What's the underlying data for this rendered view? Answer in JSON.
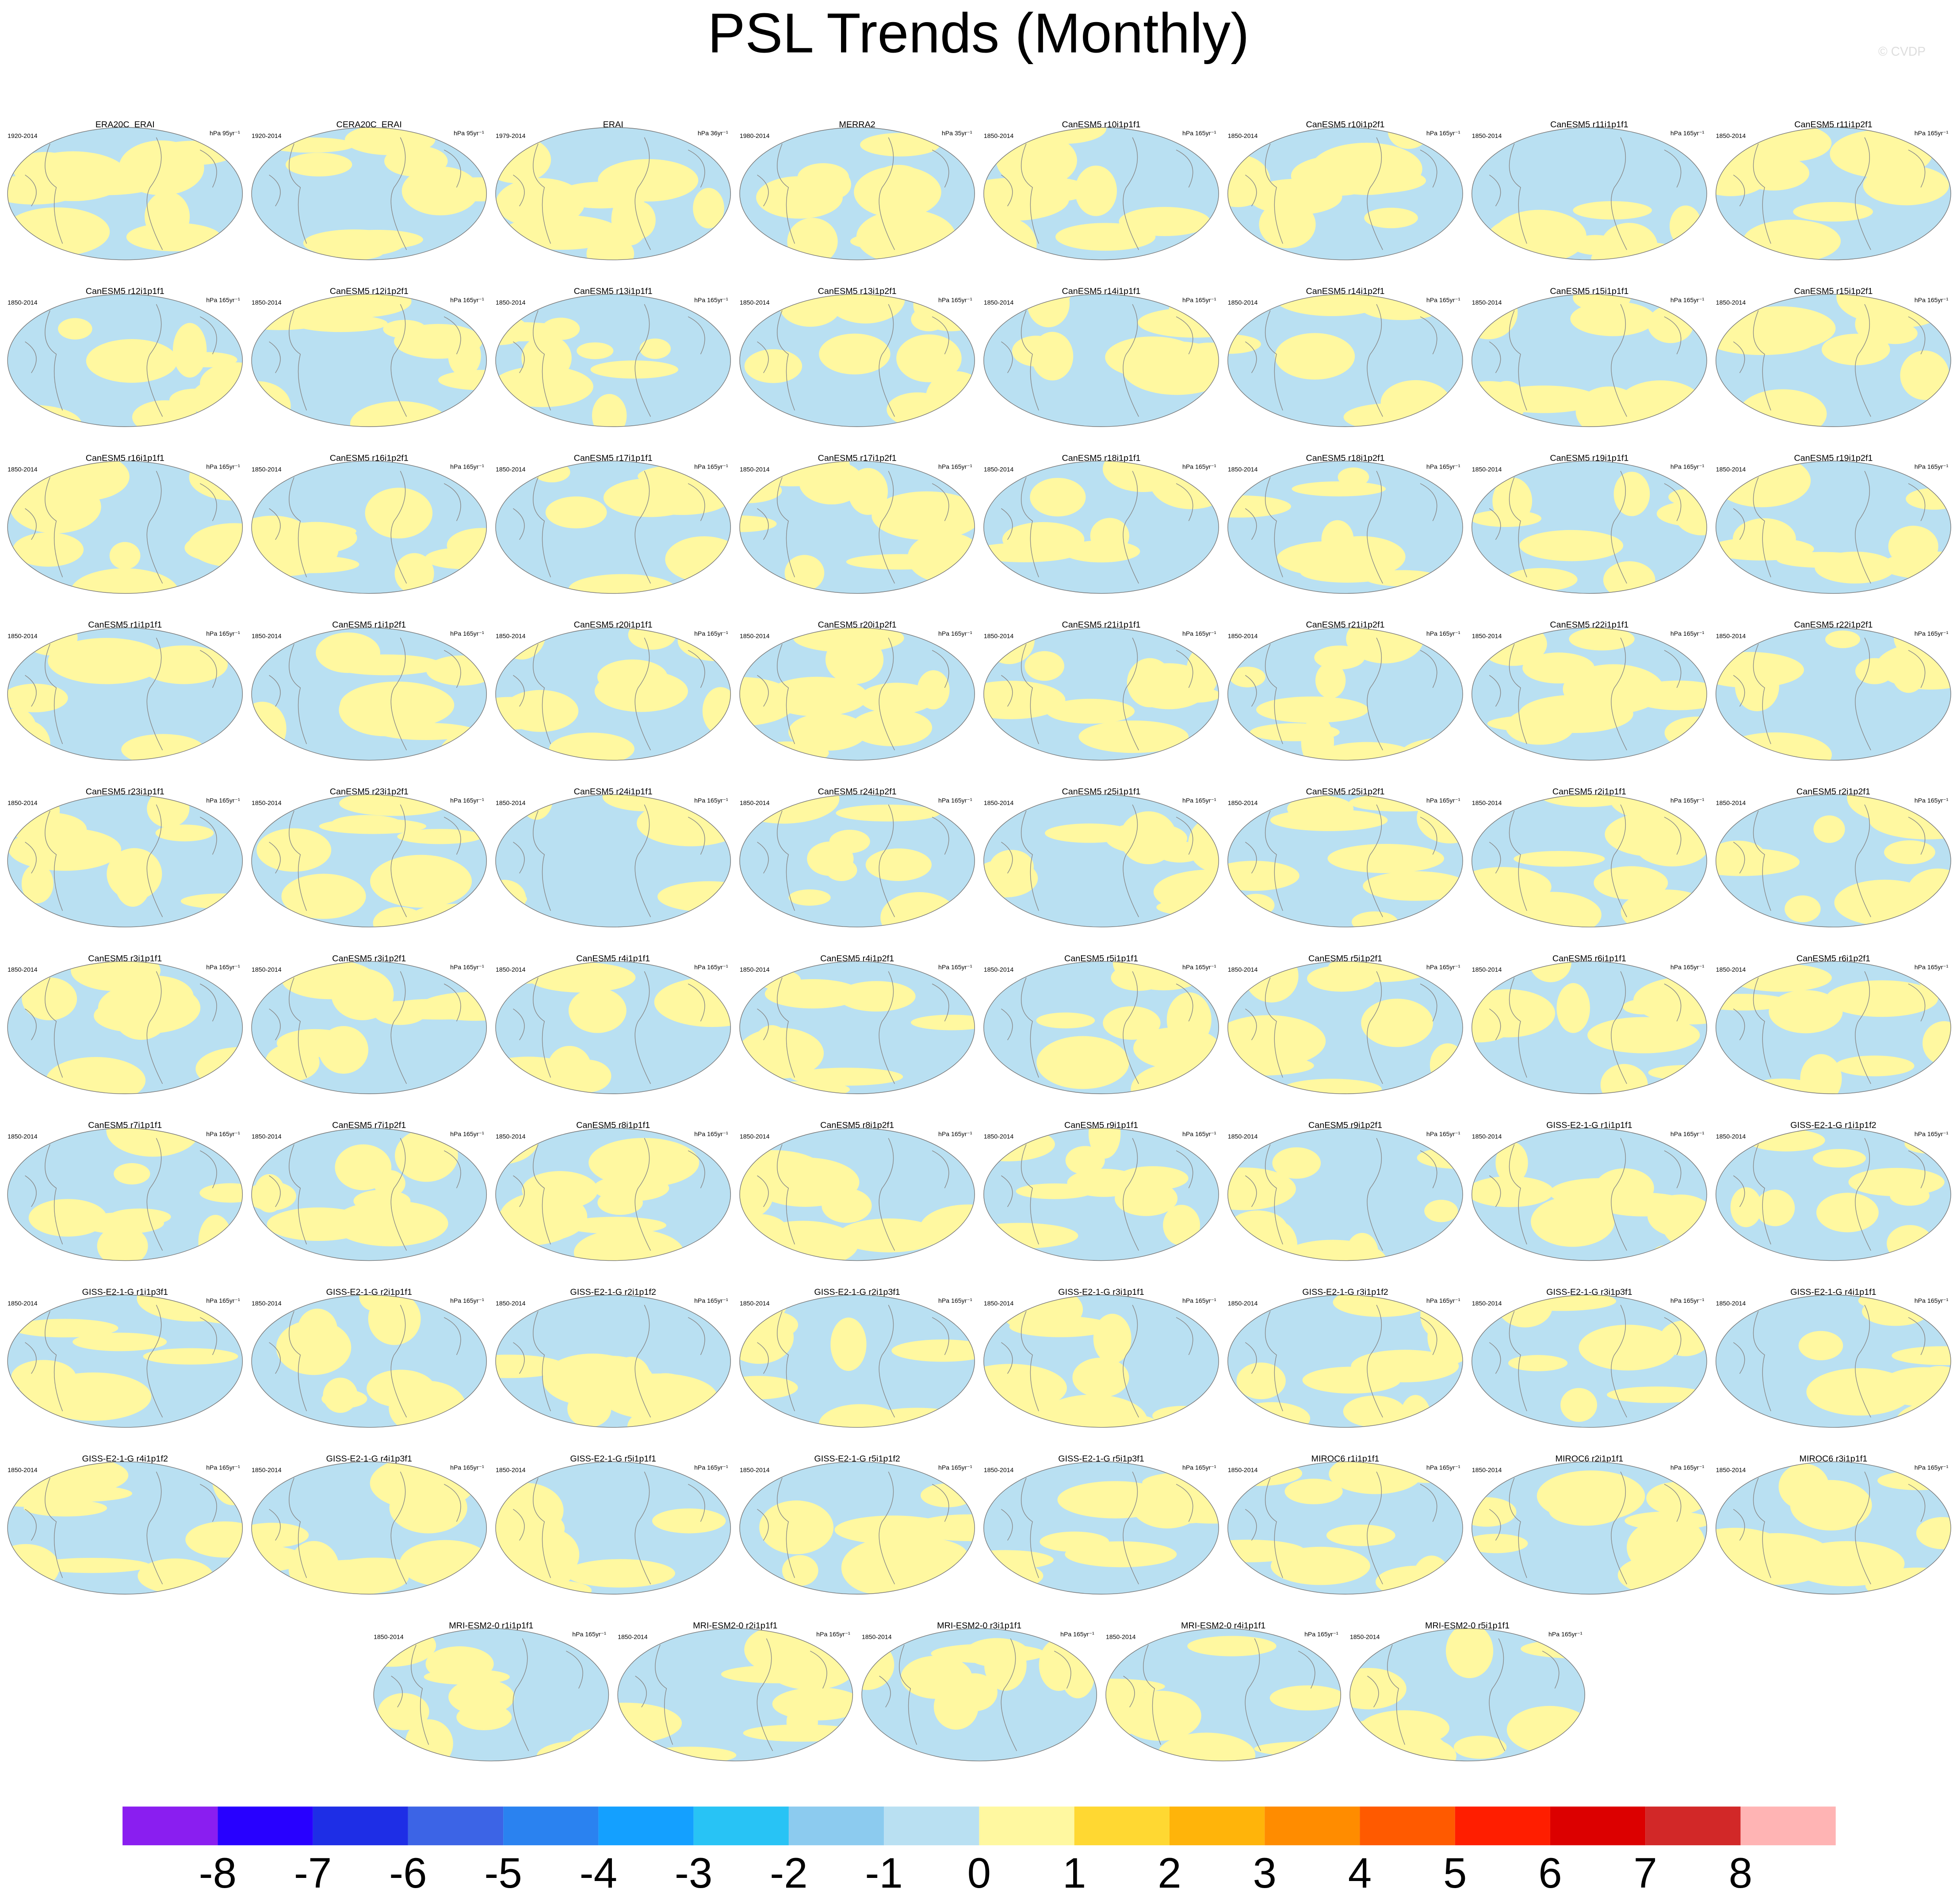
{
  "title": "PSL Trends (Monthly)",
  "watermark": "© CVDP",
  "panels": [
    {
      "title": "ERA20C_ERAI",
      "period": "1920-2014",
      "units": "hPa 95yr⁻¹"
    },
    {
      "title": "CERA20C_ERAI",
      "period": "1920-2014",
      "units": "hPa 95yr⁻¹"
    },
    {
      "title": "ERAI",
      "period": "1979-2014",
      "units": "hPa 36yr⁻¹"
    },
    {
      "title": "MERRA2",
      "period": "1980-2014",
      "units": "hPa 35yr⁻¹"
    },
    {
      "title": "CanESM5 r10i1p1f1",
      "period": "1850-2014",
      "units": "hPa 165yr⁻¹"
    },
    {
      "title": "CanESM5 r10i1p2f1",
      "period": "1850-2014",
      "units": "hPa 165yr⁻¹"
    },
    {
      "title": "CanESM5 r11i1p1f1",
      "period": "1850-2014",
      "units": "hPa 165yr⁻¹"
    },
    {
      "title": "CanESM5 r11i1p2f1",
      "period": "1850-2014",
      "units": "hPa 165yr⁻¹"
    },
    {
      "title": "CanESM5 r12i1p1f1",
      "period": "1850-2014",
      "units": "hPa 165yr⁻¹"
    },
    {
      "title": "CanESM5 r12i1p2f1",
      "period": "1850-2014",
      "units": "hPa 165yr⁻¹"
    },
    {
      "title": "CanESM5 r13i1p1f1",
      "period": "1850-2014",
      "units": "hPa 165yr⁻¹"
    },
    {
      "title": "CanESM5 r13i1p2f1",
      "period": "1850-2014",
      "units": "hPa 165yr⁻¹"
    },
    {
      "title": "CanESM5 r14i1p1f1",
      "period": "1850-2014",
      "units": "hPa 165yr⁻¹"
    },
    {
      "title": "CanESM5 r14i1p2f1",
      "period": "1850-2014",
      "units": "hPa 165yr⁻¹"
    },
    {
      "title": "CanESM5 r15i1p1f1",
      "period": "1850-2014",
      "units": "hPa 165yr⁻¹"
    },
    {
      "title": "CanESM5 r15i1p2f1",
      "period": "1850-2014",
      "units": "hPa 165yr⁻¹"
    },
    {
      "title": "CanESM5 r16i1p1f1",
      "period": "1850-2014",
      "units": "hPa 165yr⁻¹"
    },
    {
      "title": "CanESM5 r16i1p2f1",
      "period": "1850-2014",
      "units": "hPa 165yr⁻¹"
    },
    {
      "title": "CanESM5 r17i1p1f1",
      "period": "1850-2014",
      "units": "hPa 165yr⁻¹"
    },
    {
      "title": "CanESM5 r17i1p2f1",
      "period": "1850-2014",
      "units": "hPa 165yr⁻¹"
    },
    {
      "title": "CanESM5 r18i1p1f1",
      "period": "1850-2014",
      "units": "hPa 165yr⁻¹"
    },
    {
      "title": "CanESM5 r18i1p2f1",
      "period": "1850-2014",
      "units": "hPa 165yr⁻¹"
    },
    {
      "title": "CanESM5 r19i1p1f1",
      "period": "1850-2014",
      "units": "hPa 165yr⁻¹"
    },
    {
      "title": "CanESM5 r19i1p2f1",
      "period": "1850-2014",
      "units": "hPa 165yr⁻¹"
    },
    {
      "title": "CanESM5 r1i1p1f1",
      "period": "1850-2014",
      "units": "hPa 165yr⁻¹"
    },
    {
      "title": "CanESM5 r1i1p2f1",
      "period": "1850-2014",
      "units": "hPa 165yr⁻¹"
    },
    {
      "title": "CanESM5 r20i1p1f1",
      "period": "1850-2014",
      "units": "hPa 165yr⁻¹"
    },
    {
      "title": "CanESM5 r20i1p2f1",
      "period": "1850-2014",
      "units": "hPa 165yr⁻¹"
    },
    {
      "title": "CanESM5 r21i1p1f1",
      "period": "1850-2014",
      "units": "hPa 165yr⁻¹"
    },
    {
      "title": "CanESM5 r21i1p2f1",
      "period": "1850-2014",
      "units": "hPa 165yr⁻¹"
    },
    {
      "title": "CanESM5 r22i1p1f1",
      "period": "1850-2014",
      "units": "hPa 165yr⁻¹"
    },
    {
      "title": "CanESM5 r22i1p2f1",
      "period": "1850-2014",
      "units": "hPa 165yr⁻¹"
    },
    {
      "title": "CanESM5 r23i1p1f1",
      "period": "1850-2014",
      "units": "hPa 165yr⁻¹"
    },
    {
      "title": "CanESM5 r23i1p2f1",
      "period": "1850-2014",
      "units": "hPa 165yr⁻¹"
    },
    {
      "title": "CanESM5 r24i1p1f1",
      "period": "1850-2014",
      "units": "hPa 165yr⁻¹"
    },
    {
      "title": "CanESM5 r24i1p2f1",
      "period": "1850-2014",
      "units": "hPa 165yr⁻¹"
    },
    {
      "title": "CanESM5 r25i1p1f1",
      "period": "1850-2014",
      "units": "hPa 165yr⁻¹"
    },
    {
      "title": "CanESM5 r25i1p2f1",
      "period": "1850-2014",
      "units": "hPa 165yr⁻¹"
    },
    {
      "title": "CanESM5 r2i1p1f1",
      "period": "1850-2014",
      "units": "hPa 165yr⁻¹"
    },
    {
      "title": "CanESM5 r2i1p2f1",
      "period": "1850-2014",
      "units": "hPa 165yr⁻¹"
    },
    {
      "title": "CanESM5 r3i1p1f1",
      "period": "1850-2014",
      "units": "hPa 165yr⁻¹"
    },
    {
      "title": "CanESM5 r3i1p2f1",
      "period": "1850-2014",
      "units": "hPa 165yr⁻¹"
    },
    {
      "title": "CanESM5 r4i1p1f1",
      "period": "1850-2014",
      "units": "hPa 165yr⁻¹"
    },
    {
      "title": "CanESM5 r4i1p2f1",
      "period": "1850-2014",
      "units": "hPa 165yr⁻¹"
    },
    {
      "title": "CanESM5 r5i1p1f1",
      "period": "1850-2014",
      "units": "hPa 165yr⁻¹"
    },
    {
      "title": "CanESM5 r5i1p2f1",
      "period": "1850-2014",
      "units": "hPa 165yr⁻¹"
    },
    {
      "title": "CanESM5 r6i1p1f1",
      "period": "1850-2014",
      "units": "hPa 165yr⁻¹"
    },
    {
      "title": "CanESM5 r6i1p2f1",
      "period": "1850-2014",
      "units": "hPa 165yr⁻¹"
    },
    {
      "title": "CanESM5 r7i1p1f1",
      "period": "1850-2014",
      "units": "hPa 165yr⁻¹"
    },
    {
      "title": "CanESM5 r7i1p2f1",
      "period": "1850-2014",
      "units": "hPa 165yr⁻¹"
    },
    {
      "title": "CanESM5 r8i1p1f1",
      "period": "1850-2014",
      "units": "hPa 165yr⁻¹"
    },
    {
      "title": "CanESM5 r8i1p2f1",
      "period": "1850-2014",
      "units": "hPa 165yr⁻¹"
    },
    {
      "title": "CanESM5 r9i1p1f1",
      "period": "1850-2014",
      "units": "hPa 165yr⁻¹"
    },
    {
      "title": "CanESM5 r9i1p2f1",
      "period": "1850-2014",
      "units": "hPa 165yr⁻¹"
    },
    {
      "title": "GISS-E2-1-G r1i1p1f1",
      "period": "1850-2014",
      "units": "hPa 165yr⁻¹"
    },
    {
      "title": "GISS-E2-1-G r1i1p1f2",
      "period": "1850-2014",
      "units": "hPa 165yr⁻¹"
    },
    {
      "title": "GISS-E2-1-G r1i1p3f1",
      "period": "1850-2014",
      "units": "hPa 165yr⁻¹"
    },
    {
      "title": "GISS-E2-1-G r2i1p1f1",
      "period": "1850-2014",
      "units": "hPa 165yr⁻¹"
    },
    {
      "title": "GISS-E2-1-G r2i1p1f2",
      "period": "1850-2014",
      "units": "hPa 165yr⁻¹"
    },
    {
      "title": "GISS-E2-1-G r2i1p3f1",
      "period": "1850-2014",
      "units": "hPa 165yr⁻¹"
    },
    {
      "title": "GISS-E2-1-G r3i1p1f1",
      "period": "1850-2014",
      "units": "hPa 165yr⁻¹"
    },
    {
      "title": "GISS-E2-1-G r3i1p1f2",
      "period": "1850-2014",
      "units": "hPa 165yr⁻¹"
    },
    {
      "title": "GISS-E2-1-G r3i1p3f1",
      "period": "1850-2014",
      "units": "hPa 165yr⁻¹"
    },
    {
      "title": "GISS-E2-1-G r4i1p1f1",
      "period": "1850-2014",
      "units": "hPa 165yr⁻¹"
    },
    {
      "title": "GISS-E2-1-G r4i1p1f2",
      "period": "1850-2014",
      "units": "hPa 165yr⁻¹"
    },
    {
      "title": "GISS-E2-1-G r4i1p3f1",
      "period": "1850-2014",
      "units": "hPa 165yr⁻¹"
    },
    {
      "title": "GISS-E2-1-G r5i1p1f1",
      "period": "1850-2014",
      "units": "hPa 165yr⁻¹"
    },
    {
      "title": "GISS-E2-1-G r5i1p1f2",
      "period": "1850-2014",
      "units": "hPa 165yr⁻¹"
    },
    {
      "title": "GISS-E2-1-G r5i1p3f1",
      "period": "1850-2014",
      "units": "hPa 165yr⁻¹"
    },
    {
      "title": "MIROC6 r1i1p1f1",
      "period": "1850-2014",
      "units": "hPa 165yr⁻¹"
    },
    {
      "title": "MIROC6 r2i1p1f1",
      "period": "1850-2014",
      "units": "hPa 165yr⁻¹"
    },
    {
      "title": "MIROC6 r3i1p1f1",
      "period": "1850-2014",
      "units": "hPa 165yr⁻¹"
    },
    {
      "title": "MRI-ESM2-0 r1i1p1f1",
      "period": "1850-2014",
      "units": "hPa 165yr⁻¹"
    },
    {
      "title": "MRI-ESM2-0 r2i1p1f1",
      "period": "1850-2014",
      "units": "hPa 165yr⁻¹"
    },
    {
      "title": "MRI-ESM2-0 r3i1p1f1",
      "period": "1850-2014",
      "units": "hPa 165yr⁻¹"
    },
    {
      "title": "MRI-ESM2-0 r4i1p1f1",
      "period": "1850-2014",
      "units": "hPa 165yr⁻¹"
    },
    {
      "title": "MRI-ESM2-0 r5i1p1f1",
      "period": "1850-2014",
      "units": "hPa 165yr⁻¹"
    }
  ],
  "colorbar": {
    "colors": [
      "#8a1ef0",
      "#2800ff",
      "#1e2ee6",
      "#3c64e6",
      "#2a82f0",
      "#14a0ff",
      "#28c3f5",
      "#8ccbef",
      "#b9e0f2",
      "#fff8a0",
      "#ffd832",
      "#ffb40a",
      "#ff8c00",
      "#ff5a00",
      "#ff1e00",
      "#dc0000",
      "#d22828",
      "#ffb4b4"
    ],
    "ticks": [
      -8,
      -7,
      -6,
      -5,
      -4,
      -3,
      -2,
      -1,
      0,
      1,
      2,
      3,
      4,
      5,
      6,
      7,
      8
    ]
  }
}
